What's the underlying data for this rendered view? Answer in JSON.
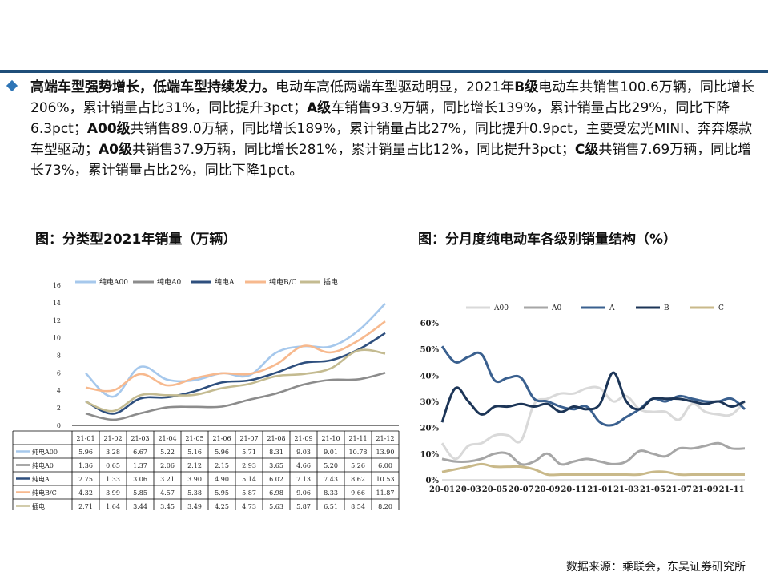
{
  "summary": {
    "lead": "高端车型强势增长，低端车型持续发力。",
    "parts": [
      {
        "t": "电动车高低两端车型驱动明显，2021年",
        "b": false
      },
      {
        "t": "B级",
        "b": true
      },
      {
        "t": "电动车共销售100.6万辆，同比增长206%，累计销量占比31%，同比提升3pct；",
        "b": false
      },
      {
        "t": "A级",
        "b": true
      },
      {
        "t": "车销售93.9万辆，同比增长139%，累计销量占比29%，同比下降6.3pct；",
        "b": false
      },
      {
        "t": "A00级",
        "b": true
      },
      {
        "t": "共销售89.0万辆，同比增长189%，累计销量占比27%，同比提升0.9pct，主要受宏光MINI、奔奔爆款车型驱动；",
        "b": false
      },
      {
        "t": "A0级",
        "b": true
      },
      {
        "t": "共销售37.9万辆，同比增长281%，累计销量占比12%，同比提升3pct；",
        "b": false
      },
      {
        "t": "C级",
        "b": true
      },
      {
        "t": "共销售7.69万辆，同比增长73%，累计销量占比2%，同比下降1pct。",
        "b": false
      }
    ]
  },
  "chart1_title": "图：分类型2021年销量（万辆）",
  "chart2_title": "图：分月度纯电动车各级别销量结构（%）",
  "source": "数据来源：乘联会，东吴证券研究所",
  "colors": {
    "c1": [
      "#a6c8ec",
      "#8c8c8c",
      "#2e4f7e",
      "#f7b98e",
      "#c4bb91"
    ],
    "c2": [
      "#d9d9d9",
      "#a6a6a6",
      "#3a608f",
      "#1c3557",
      "#c9b98a"
    ]
  },
  "chart_data": [
    {
      "type": "line",
      "categories": [
        "21-01",
        "21-02",
        "21-03",
        "21-04",
        "21-05",
        "21-06",
        "21-07",
        "21-08",
        "21-09",
        "21-10",
        "21-11",
        "21-12"
      ],
      "ylim": [
        0,
        16
      ],
      "yticks": [
        "0",
        "2",
        "4",
        "6",
        "8",
        "10",
        "12",
        "14",
        "16"
      ],
      "legend_position": "top",
      "table_below": true,
      "series": [
        {
          "name": "纯电A00",
          "values": [
            5.96,
            3.28,
            6.67,
            5.22,
            5.16,
            5.96,
            5.71,
            8.31,
            9.03,
            9.01,
            10.78,
            13.9
          ],
          "labels": [
            "5.96",
            "3.28",
            "6.67",
            "5.22",
            "5.16",
            "5.96",
            "5.71",
            "8.31",
            "9.03",
            "9.01",
            "10.78",
            "13.90"
          ]
        },
        {
          "name": "纯电A0",
          "values": [
            1.36,
            0.65,
            1.37,
            2.06,
            2.12,
            2.15,
            2.93,
            3.65,
            4.66,
            5.2,
            5.26,
            6.0
          ],
          "labels": [
            "1.36",
            "0.65",
            "1.37",
            "2.06",
            "2.12",
            "2.15",
            "2.93",
            "3.65",
            "4.66",
            "5.20",
            "5.26",
            "6.00"
          ]
        },
        {
          "name": "纯电A",
          "values": [
            2.75,
            1.33,
            3.06,
            3.21,
            3.9,
            4.9,
            5.14,
            6.02,
            7.13,
            7.43,
            8.62,
            10.53
          ],
          "labels": [
            "2.75",
            "1.33",
            "3.06",
            "3.21",
            "3.90",
            "4.90",
            "5.14",
            "6.02",
            "7.13",
            "7.43",
            "8.62",
            "10.53"
          ]
        },
        {
          "name": "纯电B/C",
          "values": [
            4.32,
            3.99,
            5.85,
            4.57,
            5.38,
            5.95,
            5.87,
            6.98,
            9.06,
            8.33,
            9.66,
            11.87
          ],
          "labels": [
            "4.32",
            "3.99",
            "5.85",
            "4.57",
            "5.38",
            "5.95",
            "5.87",
            "6.98",
            "9.06",
            "8.33",
            "9.66",
            "11.87"
          ]
        },
        {
          "name": "插电",
          "values": [
            2.71,
            1.64,
            3.44,
            3.45,
            3.49,
            4.25,
            4.73,
            5.63,
            5.87,
            6.51,
            8.54,
            8.2
          ],
          "labels": [
            "2.71",
            "1.64",
            "3.44",
            "3.45",
            "3.49",
            "4.25",
            "4.73",
            "5.63",
            "5.87",
            "6.51",
            "8.54",
            "8.20"
          ]
        }
      ]
    },
    {
      "type": "line",
      "x": [
        "20-01",
        "20-02",
        "20-03",
        "20-04",
        "20-05",
        "20-06",
        "20-07",
        "20-08",
        "20-09",
        "20-10",
        "20-11",
        "20-12",
        "21-01",
        "21-02",
        "21-03",
        "21-04",
        "21-05",
        "21-06",
        "21-07",
        "21-08",
        "21-09",
        "21-10",
        "21-11",
        "21-12"
      ],
      "xtick_labels": [
        "20-01",
        "20-03",
        "20-05",
        "20-07",
        "20-09",
        "20-11",
        "21-01",
        "21-03",
        "21-05",
        "21-07",
        "21-09",
        "21-11"
      ],
      "ylim": [
        0,
        60
      ],
      "yticks": [
        "0%",
        "10%",
        "20%",
        "30%",
        "40%",
        "50%",
        "60%"
      ],
      "legend_position": "top",
      "series": [
        {
          "name": "A00",
          "values": [
            14,
            8,
            13,
            14,
            17,
            17,
            15,
            29,
            31,
            33,
            33,
            35,
            35,
            30,
            32,
            27,
            26,
            26,
            23,
            29,
            26,
            25,
            25,
            30
          ]
        },
        {
          "name": "A0",
          "values": [
            8,
            7,
            7,
            8,
            10,
            10,
            6,
            7,
            10,
            6,
            7,
            8,
            7,
            6,
            7,
            11,
            10,
            9,
            12,
            12,
            13,
            14,
            12,
            12
          ]
        },
        {
          "name": "A",
          "values": [
            51,
            45,
            47,
            48,
            38,
            39,
            39,
            31,
            30,
            28,
            27,
            28,
            22,
            21,
            24,
            27,
            31,
            30,
            32,
            31,
            30,
            30,
            31,
            27
          ]
        },
        {
          "name": "B",
          "values": [
            22,
            35,
            30,
            25,
            28,
            28,
            29,
            28,
            29,
            26,
            28,
            27,
            29,
            41,
            30,
            27,
            31,
            31,
            31,
            30,
            29,
            30,
            28,
            30
          ]
        },
        {
          "name": "C",
          "values": [
            3,
            4,
            5,
            6,
            5,
            5,
            5,
            4,
            2,
            2,
            2,
            2,
            2,
            2,
            2,
            2,
            3,
            3,
            2,
            2,
            2,
            2,
            2,
            2
          ]
        }
      ]
    }
  ]
}
